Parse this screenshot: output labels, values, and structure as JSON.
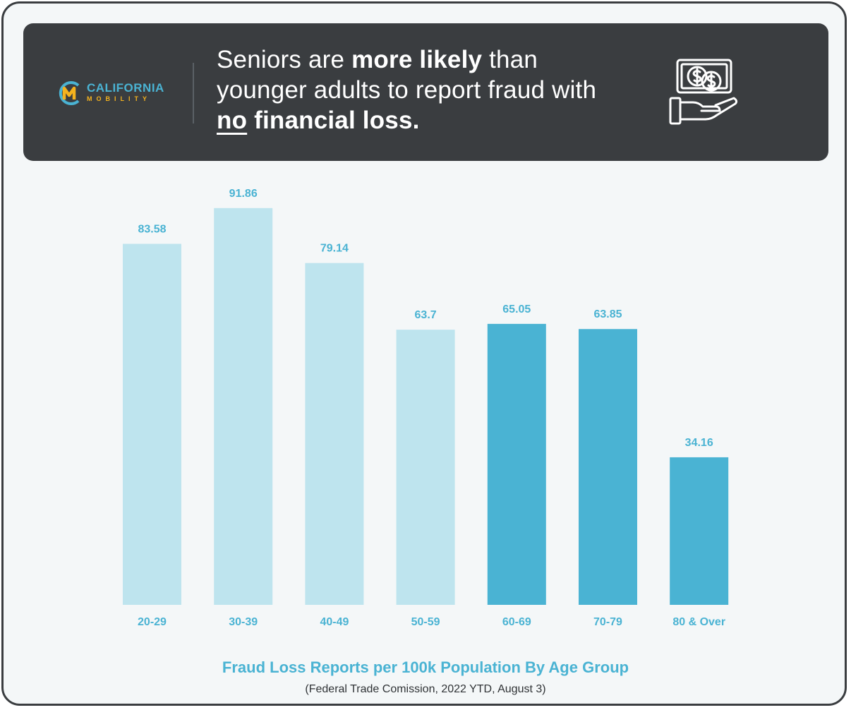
{
  "brand": {
    "name_line1": "CALIFORNIA",
    "name_line2": "MOBILITY",
    "icon": "cm-logo-icon"
  },
  "headline": {
    "part1": "Seniors are ",
    "bold1": "more likely",
    "part2": " than younger adults to report fraud with ",
    "underlined": "no",
    "bold2": " financial loss."
  },
  "header_icon": "money-hand-icon",
  "colors": {
    "frame": "#3a3d40",
    "background": "#f4f7f8",
    "accent": "#4ab3d3",
    "bar_light": "#bee4ee",
    "bar_dark": "#4ab3d3",
    "logo_yellow": "#f4b21e"
  },
  "chart_data": {
    "type": "bar",
    "title": "Fraud Loss Reports per 100k Population By Age Group",
    "source": "(Federal Trade Comission, 2022 YTD, August 3)",
    "xlabel": "",
    "ylabel": "",
    "ylim": [
      0,
      100
    ],
    "grid": false,
    "categories": [
      "20-29",
      "30-39",
      "40-49",
      "50-59",
      "60-69",
      "70-79",
      "80 & Over"
    ],
    "values": [
      83.58,
      91.86,
      79.14,
      63.7,
      65.05,
      63.85,
      34.16
    ],
    "value_labels": [
      "83.58",
      "91.86",
      "79.14",
      "63.7",
      "65.05",
      "63.85",
      "34.16"
    ],
    "highlighted": [
      false,
      false,
      false,
      false,
      true,
      true,
      true
    ]
  }
}
